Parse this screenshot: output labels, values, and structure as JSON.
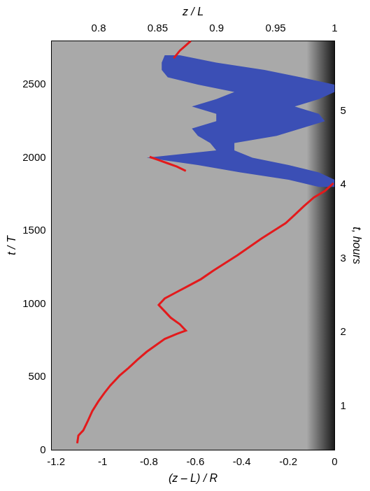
{
  "chart_data": {
    "type": "line",
    "xlabel": "(z – L) / R",
    "ylabel": "t / T",
    "x2label": "z / L",
    "y2label": "t, hours",
    "xlim": [
      -1.22,
      0
    ],
    "xticks": [
      -1.2,
      -1,
      -0.8,
      -0.6,
      -0.4,
      -0.2,
      0
    ],
    "x2lim": [
      0.76,
      1
    ],
    "x2ticks": [
      0.8,
      0.85,
      0.9,
      0.95,
      1
    ],
    "ylim": [
      0,
      2800
    ],
    "yticks": [
      0,
      500,
      1000,
      1500,
      2000,
      2500
    ],
    "y2lim": [
      0.4,
      5.95
    ],
    "y2ticks": [
      1,
      2,
      3,
      4,
      5
    ],
    "grid": false,
    "series": [
      {
        "type": "line",
        "color": "#e31a1c",
        "x": [
          -1.109,
          -1.104,
          -1.083,
          -1.063,
          -1.044,
          -1.018,
          -0.992,
          -0.966,
          -0.927,
          -0.888,
          -0.849,
          -0.81,
          -0.771,
          -0.732,
          -0.68,
          -0.641,
          -0.667,
          -0.706,
          -0.732,
          -0.758,
          -0.732,
          -0.68,
          -0.628,
          -0.576,
          -0.523,
          -0.471,
          -0.419,
          -0.367,
          -0.315,
          -0.263,
          -0.211,
          -0.172,
          -0.133,
          -0.089,
          -0.042,
          -0.005,
          null,
          -0.641,
          -0.68,
          -0.719,
          -0.758,
          -0.797,
          null,
          -0.693,
          -0.667,
          -0.641,
          -0.62
        ],
        "values": [
          48,
          101,
          136,
          202,
          268,
          334,
          392,
          444,
          510,
          563,
          620,
          673,
          717,
          761,
          796,
          818,
          862,
          906,
          950,
          994,
          1038,
          1082,
          1126,
          1170,
          1228,
          1280,
          1333,
          1390,
          1448,
          1500,
          1553,
          1610,
          1668,
          1729,
          1773,
          1826,
          null,
          1910,
          1940,
          1962,
          1984,
          2006,
          null,
          2680,
          2732,
          2768,
          2798
        ]
      },
      {
        "type": "band",
        "color": "#3b4fb5",
        "values": [
          1800,
          1850,
          1900,
          1950,
          2000,
          2050,
          2100,
          2150,
          2200,
          2250,
          2300,
          2350,
          2400,
          2450,
          2500,
          2550,
          2600,
          2650,
          2700
        ],
        "x_min": [
          -0.068,
          -0.198,
          -0.406,
          -0.589,
          -0.81,
          -0.51,
          -0.536,
          -0.589,
          -0.615,
          -0.51,
          -0.51,
          -0.615,
          -0.51,
          -0.432,
          -0.589,
          -0.719,
          -0.745,
          -0.745,
          -0.732
        ],
        "x_max": [
          0,
          0,
          -0.068,
          -0.198,
          -0.354,
          -0.432,
          -0.432,
          -0.25,
          -0.146,
          -0.042,
          -0.068,
          -0.172,
          -0.068,
          0,
          0,
          -0.146,
          -0.302,
          -0.51,
          -0.667
        ]
      }
    ]
  }
}
